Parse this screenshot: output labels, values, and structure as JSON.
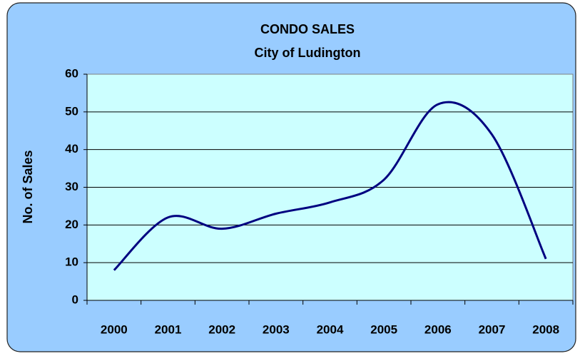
{
  "chart_data": {
    "type": "line",
    "title": "CONDO SALES",
    "subtitle": "City of Ludington",
    "y_label": "No. of Sales",
    "categories": [
      "2000",
      "2001",
      "2002",
      "2003",
      "2004",
      "2005",
      "2006",
      "2007",
      "2008"
    ],
    "series": [
      {
        "name": "Condo Sales",
        "color": "#000080",
        "values": [
          8,
          22,
          19,
          23,
          26,
          32,
          52,
          44,
          11
        ]
      }
    ],
    "ylim": [
      0,
      60
    ],
    "yticks": [
      0,
      10,
      20,
      30,
      40,
      50,
      60
    ],
    "grid": true,
    "smooth": true
  }
}
